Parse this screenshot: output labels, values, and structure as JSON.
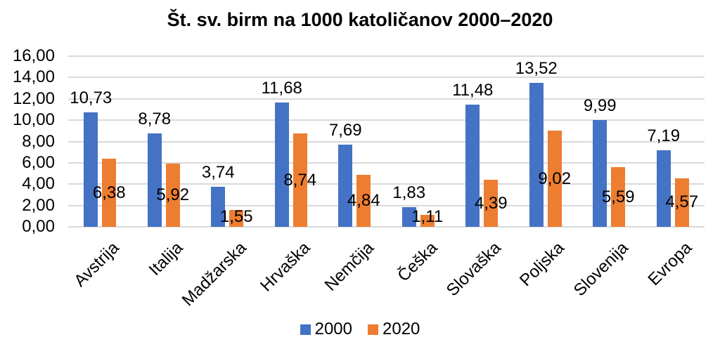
{
  "chart_data": {
    "type": "bar",
    "title": "Št. sv. birm na 1000 katoličanov 2000–2020",
    "categories": [
      "Avstrija",
      "Italija",
      "Madžarska",
      "Hrvaška",
      "Nemčija",
      "Češka",
      "Slovaška",
      "Poljska",
      "Slovenija",
      "Evropa"
    ],
    "series": [
      {
        "name": "2000",
        "color": "#4472C4",
        "values": [
          10.73,
          8.78,
          3.74,
          11.68,
          7.69,
          1.83,
          11.48,
          13.52,
          9.99,
          7.19
        ],
        "labels": [
          "10,73",
          "8,78",
          "3,74",
          "11,68",
          "7,69",
          "1,83",
          "11,48",
          "13,52",
          "9,99",
          "7,19"
        ]
      },
      {
        "name": "2020",
        "color": "#ED7D31",
        "values": [
          6.38,
          5.92,
          1.55,
          8.74,
          4.84,
          1.11,
          4.39,
          9.02,
          5.59,
          4.57
        ],
        "labels": [
          "6,38",
          "5,92",
          "1,55",
          "8,74",
          "4,84",
          "1,11",
          "4,39",
          "9,02",
          "5,59",
          "4,57"
        ]
      }
    ],
    "y_axis": {
      "min": 0,
      "max": 16,
      "step": 2,
      "tick_labels": [
        "0,00",
        "2,00",
        "4,00",
        "6,00",
        "8,00",
        "10,00",
        "12,00",
        "14,00",
        "16,00"
      ]
    },
    "legend_position": "bottom",
    "grid": true,
    "gridline_color": "#D9D9D9",
    "text_color": "#000000",
    "background": "#FFFFFF"
  }
}
